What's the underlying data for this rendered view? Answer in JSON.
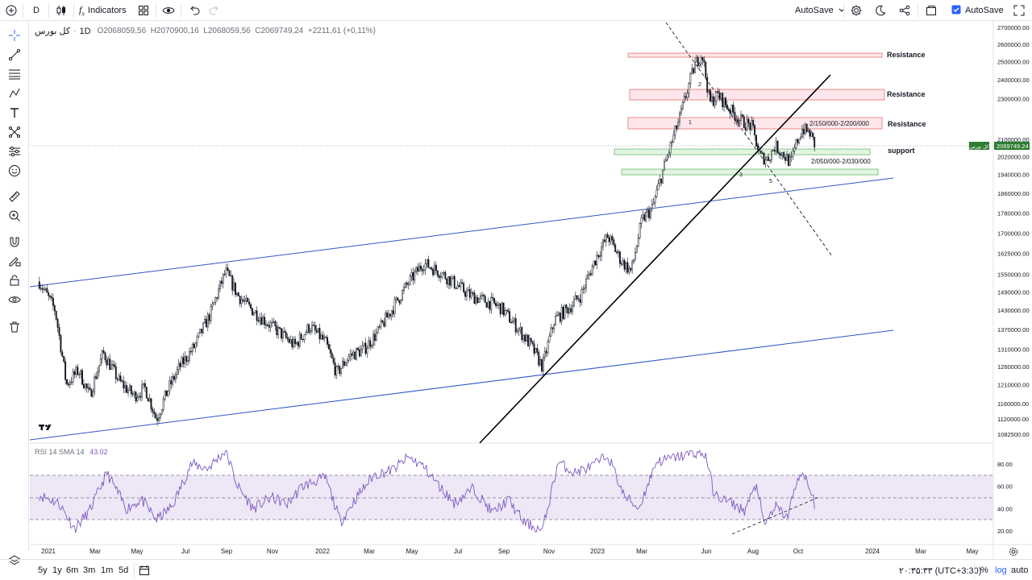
{
  "toolbar": {
    "interval": "D",
    "indicators_label": "Indicators",
    "autosave_dropdown": "AutoSave",
    "autosave_checkbox": "AutoSave"
  },
  "legend": {
    "symbol": "کل بورس",
    "interval": "1D",
    "ohlc": "O2068059,56  H2070900,16  L2068059,56  C2069749,24  +2211,61 (+0,11%)"
  },
  "rsi_legend": {
    "label": "RSI 14 SMA 14",
    "value": "43.02"
  },
  "price_axis": {
    "ticks": [
      "2700000.00",
      "2600000.00",
      "2500000.00",
      "2400000.00",
      "2300000.00",
      "2100000.00",
      "2020000.00",
      "1940000.00",
      "1860000.00",
      "1780000.00",
      "1700000.00",
      "1625000.00",
      "1550000.00",
      "1490000.00",
      "1430000.00",
      "1370000.00",
      "1310000.00",
      "1260000.00",
      "1210000.00",
      "1160000.00",
      "1120000.00",
      "1082500.00"
    ],
    "last_price": "2069749.24",
    "last_price_tag": "کل بورس"
  },
  "rsi_axis": {
    "ticks": [
      "80.00",
      "60.00",
      "40.00",
      "20.00"
    ]
  },
  "time_axis": {
    "ticks": [
      "2021",
      "Mar",
      "May",
      "Jul",
      "Sep",
      "Nov",
      "2022",
      "Mar",
      "May",
      "Jul",
      "Sep",
      "Nov",
      "2023",
      "Mar",
      "Jun",
      "Aug",
      "Oct",
      "2024",
      "Mar",
      "May"
    ]
  },
  "annotations": {
    "resistance_1": "Resistance",
    "resistance_2": "Resistance",
    "resistance_3": "Resistance",
    "resistance_zone": "2/150/000-2/200/000",
    "support": "support",
    "support_zone": "2/050/000-2/030/000",
    "wave_labels": [
      "1",
      "2",
      "3",
      "4",
      "5"
    ]
  },
  "bottom": {
    "ranges": [
      "5y",
      "1y",
      "6m",
      "3m",
      "1m",
      "5d"
    ],
    "clock": "۲۰:۳۵:۳۳ (UTC+3:30)",
    "percent": "%",
    "log": "log",
    "auto": "auto"
  },
  "colors": {
    "candle": "#131722",
    "channel": "#2f56c5",
    "trendline": "#000000",
    "resistance_fill": "#fde7ea",
    "resistance_stroke": "#e57373",
    "support_fill": "#e4f4e4",
    "support_stroke": "#66bb6a",
    "rsi_line": "#7e57c2",
    "rsi_band": "#ede7f6",
    "accent": "#2962ff"
  },
  "chart_data": {
    "type": "candlestick",
    "title": "کل بورس",
    "interval": "1D",
    "xlabel": "",
    "ylabel": "",
    "x_range": [
      "2020-12",
      "2024-05"
    ],
    "ylim": [
      1082500,
      2700000
    ],
    "grid": false,
    "close_path": [
      [
        "2020-12-20",
        1525000
      ],
      [
        "2021-01-10",
        1430000
      ],
      [
        "2021-01-25",
        1210000
      ],
      [
        "2021-02-10",
        1250000
      ],
      [
        "2021-02-25",
        1180000
      ],
      [
        "2021-03-15",
        1300000
      ],
      [
        "2021-04-05",
        1220000
      ],
      [
        "2021-04-25",
        1180000
      ],
      [
        "2021-05-10",
        1200000
      ],
      [
        "2021-05-25",
        1120000
      ],
      [
        "2021-06-10",
        1200000
      ],
      [
        "2021-06-25",
        1260000
      ],
      [
        "2021-07-15",
        1320000
      ],
      [
        "2021-08-05",
        1420000
      ],
      [
        "2021-08-25",
        1560000
      ],
      [
        "2021-09-10",
        1480000
      ],
      [
        "2021-09-25",
        1440000
      ],
      [
        "2021-10-15",
        1400000
      ],
      [
        "2021-11-05",
        1360000
      ],
      [
        "2021-11-25",
        1320000
      ],
      [
        "2021-12-15",
        1380000
      ],
      [
        "2022-01-05",
        1330000
      ],
      [
        "2022-01-20",
        1240000
      ],
      [
        "2022-02-05",
        1290000
      ],
      [
        "2022-02-25",
        1310000
      ],
      [
        "2022-03-15",
        1360000
      ],
      [
        "2022-04-05",
        1440000
      ],
      [
        "2022-04-25",
        1520000
      ],
      [
        "2022-05-15",
        1590000
      ],
      [
        "2022-06-05",
        1560000
      ],
      [
        "2022-06-25",
        1520000
      ],
      [
        "2022-07-15",
        1480000
      ],
      [
        "2022-08-05",
        1460000
      ],
      [
        "2022-08-25",
        1440000
      ],
      [
        "2022-09-15",
        1380000
      ],
      [
        "2022-10-05",
        1320000
      ],
      [
        "2022-10-20",
        1260000
      ],
      [
        "2022-11-05",
        1400000
      ],
      [
        "2022-11-25",
        1440000
      ],
      [
        "2022-12-10",
        1480000
      ],
      [
        "2023-01-01",
        1620000
      ],
      [
        "2023-01-15",
        1690000
      ],
      [
        "2023-02-01",
        1600000
      ],
      [
        "2023-02-15",
        1560000
      ],
      [
        "2023-03-01",
        1750000
      ],
      [
        "2023-03-15",
        1800000
      ],
      [
        "2023-04-01",
        1990000
      ],
      [
        "2023-04-20",
        2200000
      ],
      [
        "2023-05-10",
        2480000
      ],
      [
        "2023-05-20",
        2550000
      ],
      [
        "2023-05-30",
        2280000
      ],
      [
        "2023-06-10",
        2320000
      ],
      [
        "2023-06-25",
        2250000
      ],
      [
        "2023-07-10",
        2190000
      ],
      [
        "2023-07-25",
        2160000
      ],
      [
        "2023-08-05",
        2020000
      ],
      [
        "2023-08-15",
        2010000
      ],
      [
        "2023-08-25",
        2070000
      ],
      [
        "2023-09-05",
        2030000
      ],
      [
        "2023-09-15",
        1990000
      ],
      [
        "2023-09-22",
        2080000
      ],
      [
        "2023-09-30",
        2150000
      ],
      [
        "2023-10-10",
        2130000
      ],
      [
        "2023-10-17",
        2069749
      ]
    ],
    "resistance_zones": [
      [
        2500000,
        2520000
      ],
      [
        2280000,
        2330000
      ],
      [
        2150000,
        2200000
      ]
    ],
    "support_zones": [
      [
        2030000,
        2050000
      ],
      [
        1940000,
        1960000
      ]
    ],
    "rsi": {
      "name": "RSI 14 SMA 14",
      "ylim": [
        10,
        90
      ],
      "band": [
        30,
        70
      ],
      "last": 43.02,
      "path": [
        [
          "2020-12-20",
          52
        ],
        [
          "2021-01-15",
          45
        ],
        [
          "2021-02-05",
          22
        ],
        [
          "2021-02-25",
          38
        ],
        [
          "2021-03-20",
          72
        ],
        [
          "2021-04-15",
          40
        ],
        [
          "2021-05-05",
          48
        ],
        [
          "2021-05-25",
          30
        ],
        [
          "2021-06-15",
          42
        ],
        [
          "2021-07-10",
          80
        ],
        [
          "2021-08-01",
          76
        ],
        [
          "2021-08-25",
          92
        ],
        [
          "2021-09-10",
          60
        ],
        [
          "2021-10-01",
          40
        ],
        [
          "2021-10-25",
          50
        ],
        [
          "2021-11-15",
          44
        ],
        [
          "2021-12-05",
          60
        ],
        [
          "2022-01-05",
          68
        ],
        [
          "2022-01-25",
          28
        ],
        [
          "2022-02-15",
          50
        ],
        [
          "2022-03-10",
          70
        ],
        [
          "2022-04-05",
          75
        ],
        [
          "2022-04-25",
          86
        ],
        [
          "2022-05-15",
          78
        ],
        [
          "2022-06-05",
          60
        ],
        [
          "2022-06-25",
          45
        ],
        [
          "2022-07-20",
          58
        ],
        [
          "2022-08-15",
          36
        ],
        [
          "2022-09-05",
          48
        ],
        [
          "2022-09-25",
          28
        ],
        [
          "2022-10-20",
          20
        ],
        [
          "2022-11-10",
          82
        ],
        [
          "2022-12-01",
          72
        ],
        [
          "2022-12-25",
          78
        ],
        [
          "2023-01-15",
          88
        ],
        [
          "2023-02-05",
          52
        ],
        [
          "2023-02-25",
          40
        ],
        [
          "2023-03-20",
          82
        ],
        [
          "2023-04-15",
          86
        ],
        [
          "2023-05-10",
          90
        ],
        [
          "2023-05-25",
          88
        ],
        [
          "2023-06-05",
          52
        ],
        [
          "2023-06-25",
          46
        ],
        [
          "2023-07-15",
          38
        ],
        [
          "2023-08-01",
          62
        ],
        [
          "2023-08-10",
          24
        ],
        [
          "2023-08-25",
          42
        ],
        [
          "2023-09-10",
          32
        ],
        [
          "2023-09-25",
          70
        ],
        [
          "2023-10-05",
          66
        ],
        [
          "2023-10-17",
          43
        ]
      ]
    }
  }
}
